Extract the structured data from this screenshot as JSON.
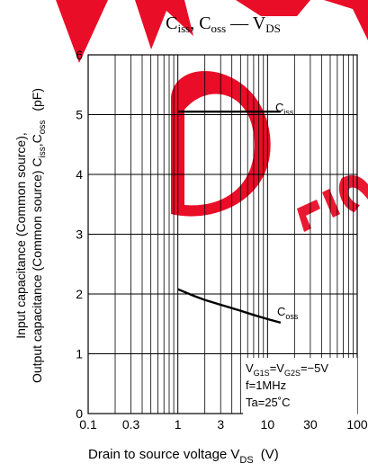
{
  "chart_data": {
    "type": "line",
    "title": {
      "main_a": "C",
      "sub_a": "iss",
      "comma": ", ",
      "main_b": "C",
      "sub_b": "oss",
      "dash": " — ",
      "main_c": "V",
      "sub_c": "DS"
    },
    "x_scale": "log",
    "xlim": [
      0.1,
      100
    ],
    "x_ticks": [
      "0.1",
      "0.3",
      "1",
      "3",
      "10",
      "30",
      "100"
    ],
    "ylim": [
      0,
      6
    ],
    "y_ticks": [
      "0",
      "1",
      "2",
      "3",
      "4",
      "5",
      "6"
    ],
    "grid": true,
    "xlabel": {
      "text": "Drain to source voltage  V",
      "sub": "DS",
      "unit": "(V)"
    },
    "ylabel": {
      "line1": "Input capacitance (Common source),",
      "line2_text": "Output capacitance (Common source)   C",
      "line2_sub1": "iss",
      "line2_mid": ",C",
      "line2_sub2": "oss",
      "line2_unit": "(pF)"
    },
    "series": [
      {
        "name_main": "C",
        "name_sub": "iss",
        "color": "#000000",
        "points": [
          [
            1,
            5.05
          ],
          [
            2,
            5.05
          ],
          [
            5,
            5.05
          ],
          [
            10,
            5.05
          ],
          [
            14,
            5.05
          ]
        ]
      },
      {
        "name_main": "C",
        "name_sub": "oss",
        "color": "#000000",
        "points": [
          [
            1,
            2.08
          ],
          [
            1.5,
            1.97
          ],
          [
            2,
            1.9
          ],
          [
            3,
            1.82
          ],
          [
            5,
            1.72
          ],
          [
            7,
            1.65
          ],
          [
            10,
            1.58
          ],
          [
            14,
            1.52
          ]
        ]
      }
    ],
    "conditions": {
      "line1_parts": [
        "V",
        "G1S",
        "=V",
        "G2S",
        "=−5V"
      ],
      "line2": "f=1MHz",
      "line3": "Ta=25˚C"
    },
    "watermark_color": "#e8001c"
  }
}
